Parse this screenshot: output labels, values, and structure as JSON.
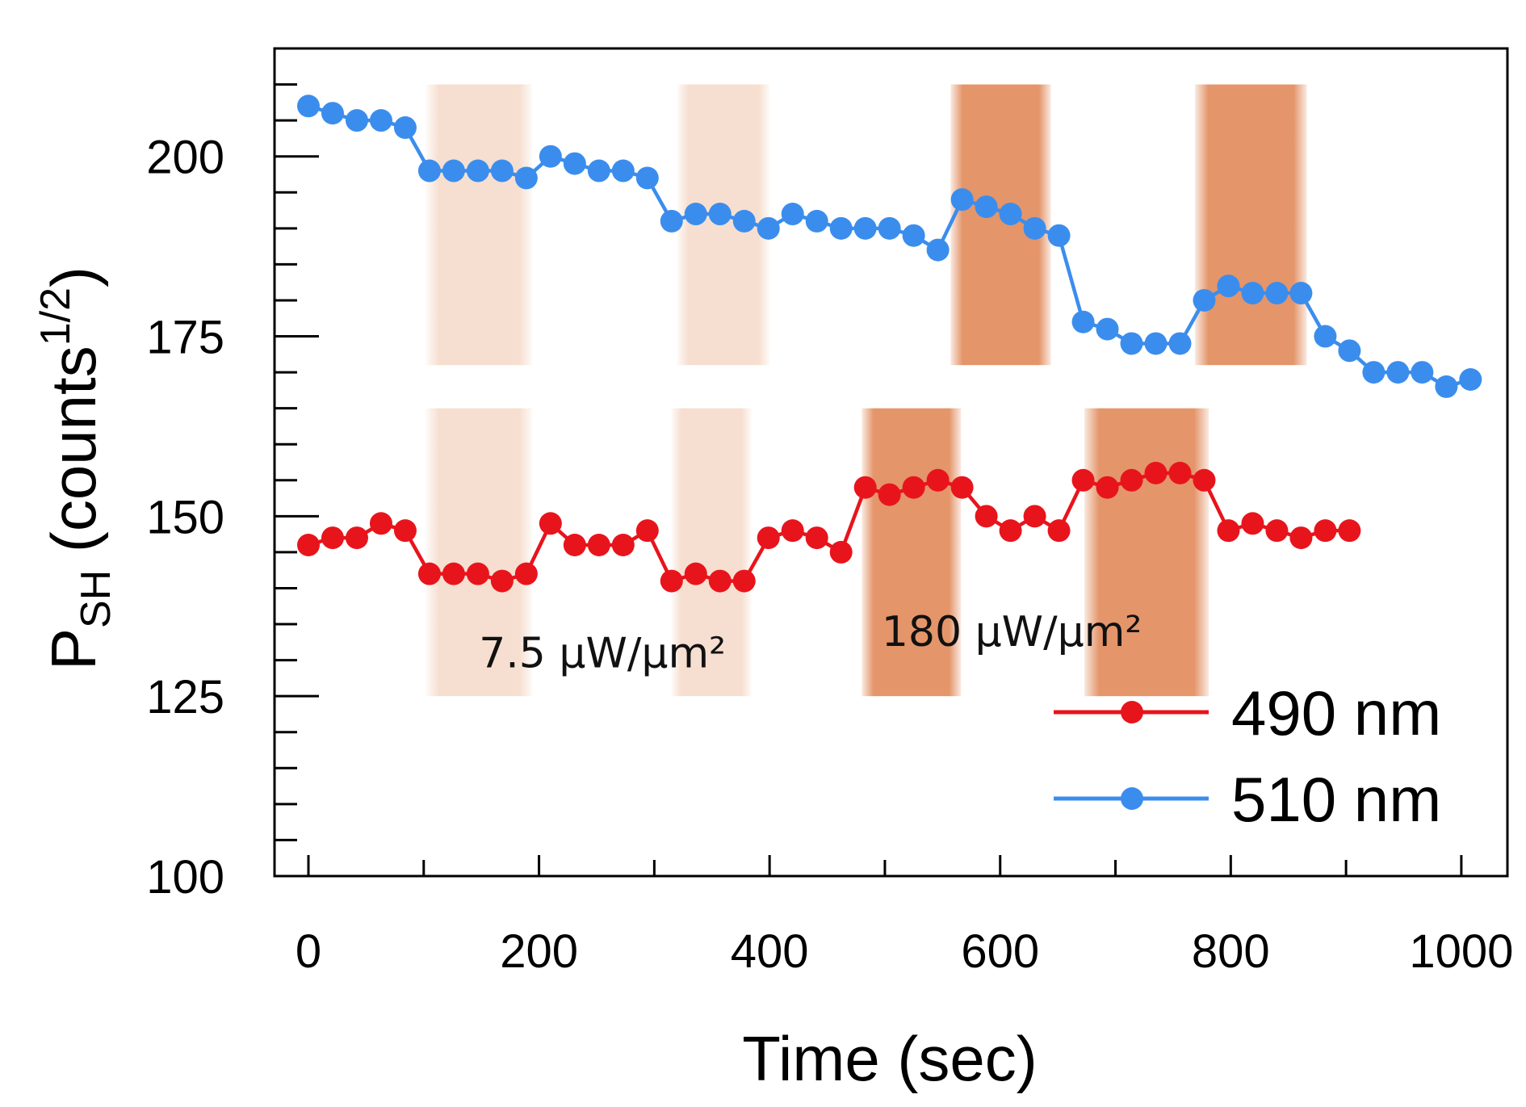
{
  "chart_data": {
    "type": "line",
    "title": "",
    "xlabel": "Time (sec)",
    "ylabel": {
      "main": "P",
      "subscript": "SH",
      "paren_open": " (counts",
      "superscript": "1/2",
      "paren_close": ")"
    },
    "xlim": [
      -30,
      1030
    ],
    "ylim": [
      100,
      215
    ],
    "xticks": [
      0,
      200,
      400,
      600,
      800,
      1000
    ],
    "xtick_labels": [
      "0",
      "200",
      "400",
      "600",
      "800",
      "1000"
    ],
    "yticks": [
      100,
      125,
      150,
      175,
      200
    ],
    "ytick_labels": [
      "100",
      "125",
      "150",
      "175",
      "200"
    ],
    "grid": false,
    "legend_position": "bottom-right",
    "colors": {
      "series_490": "#e8141c",
      "series_510": "#3b8ded",
      "band_low": "#f6dfd0",
      "band_high": "#e4956a"
    },
    "series": [
      {
        "name": "490 nm",
        "color_key": "series_490",
        "x": [
          0,
          21,
          42,
          63,
          84,
          105,
          126,
          147,
          168,
          189,
          210,
          231,
          252,
          273,
          294,
          315,
          336,
          357,
          378,
          399,
          420,
          441,
          462,
          483,
          504,
          525,
          546,
          567,
          588,
          609,
          630,
          651,
          672,
          693,
          714,
          735,
          756,
          777,
          798,
          819,
          840,
          861,
          882,
          903
        ],
        "values": [
          146,
          147,
          147,
          149,
          148,
          142,
          142,
          142,
          141,
          142,
          149,
          146,
          146,
          146,
          148,
          141,
          142,
          141,
          141,
          147,
          148,
          147,
          145,
          154,
          153,
          154,
          155,
          154,
          150,
          148,
          150,
          148,
          155,
          154,
          155,
          156,
          156,
          155,
          148,
          149,
          148,
          147,
          148,
          148
        ]
      },
      {
        "name": "510 nm",
        "color_key": "series_510",
        "x": [
          0,
          21,
          42,
          63,
          84,
          105,
          126,
          147,
          168,
          189,
          210,
          231,
          252,
          273,
          294,
          315,
          336,
          357,
          378,
          399,
          420,
          441,
          462,
          483,
          504,
          525,
          546,
          567,
          588,
          609,
          630,
          651,
          672,
          693,
          714,
          735,
          756,
          777,
          798,
          819,
          840,
          861,
          882,
          903,
          924,
          945,
          966,
          987,
          1008
        ],
        "values": [
          207,
          206,
          205,
          205,
          204,
          198,
          198,
          198,
          198,
          197,
          200,
          199,
          198,
          198,
          197,
          191,
          192,
          192,
          191,
          190,
          192,
          191,
          190,
          190,
          190,
          189,
          187,
          194,
          193,
          192,
          190,
          189,
          177,
          176,
          174,
          174,
          174,
          180,
          182,
          181,
          181,
          181,
          175,
          173,
          170,
          170,
          170,
          168,
          169
        ]
      }
    ],
    "shaded_regions": [
      {
        "x_start": 102,
        "x_end": 194,
        "y_start": 171,
        "y_end": 210,
        "intensity": "low"
      },
      {
        "x_start": 320,
        "x_end": 400,
        "y_start": 171,
        "y_end": 210,
        "intensity": "low"
      },
      {
        "x_start": 557,
        "x_end": 644,
        "y_start": 171,
        "y_end": 210,
        "intensity": "high"
      },
      {
        "x_start": 769,
        "x_end": 866,
        "y_start": 171,
        "y_end": 210,
        "intensity": "high"
      },
      {
        "x_start": 102,
        "x_end": 194,
        "y_start": 125,
        "y_end": 165,
        "intensity": "low"
      },
      {
        "x_start": 315,
        "x_end": 384,
        "y_start": 125,
        "y_end": 165,
        "intensity": "low"
      },
      {
        "x_start": 480,
        "x_end": 566,
        "y_start": 125,
        "y_end": 165,
        "intensity": "high"
      },
      {
        "x_start": 673,
        "x_end": 781,
        "y_start": 125,
        "y_end": 165,
        "intensity": "high"
      }
    ],
    "annotations": [
      {
        "text": "7.5 µW/µm²",
        "x": 255,
        "y": 129
      },
      {
        "text": "180 µW/µm²",
        "x": 610,
        "y": 132
      }
    ]
  }
}
